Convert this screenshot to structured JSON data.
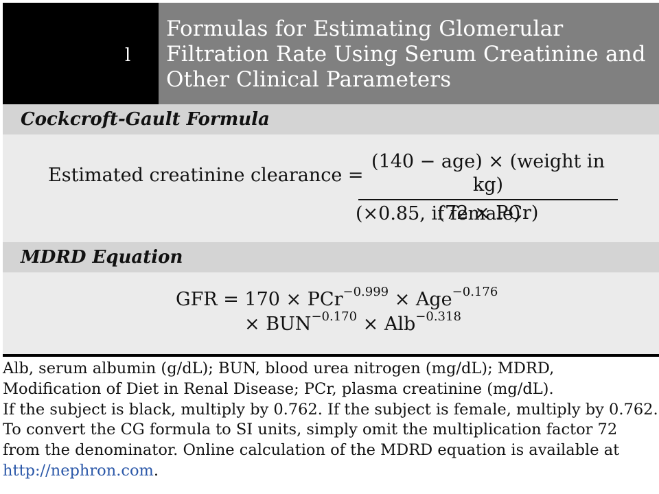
{
  "title": {
    "marker": "l",
    "lines": [
      "Formulas for Estimating Glomerular",
      "Filtration Rate Using Serum Creatinine and",
      "Other Clinical Parameters"
    ]
  },
  "cockcroft": {
    "heading": "Cockcroft-Gault Formula",
    "lhs": "Estimated creatinine clearance =",
    "numerator": "(140 − age) × (weight in kg)",
    "denominator": "(72 × PCr)",
    "note": "(×0.85, if female)"
  },
  "mdrd": {
    "heading": "MDRD Equation",
    "line1": {
      "a": "GFR = 170 × PCr",
      "a_exp": "−0.999",
      "b": " × Age",
      "b_exp": "−0.176"
    },
    "line2": {
      "a": "× BUN",
      "a_exp": "−0.170",
      "b": " × Alb",
      "b_exp": "−0.318"
    }
  },
  "footnote": {
    "lines": [
      "Alb, serum albumin (g/dL); BUN, blood urea nitrogen (mg/dL); MDRD,",
      "Modification of Diet in Renal Disease; PCr, plasma creatinine (mg/dL).",
      "If the subject is black, multiply by 0.762. If the subject is female, multiply by 0.762.",
      "To convert the CG formula to SI units, simply omit the multiplication factor 72",
      "from the denominator. Online calculation of the MDRD equation is available at"
    ],
    "link": "http://nephron.com",
    "link_suffix": "."
  }
}
